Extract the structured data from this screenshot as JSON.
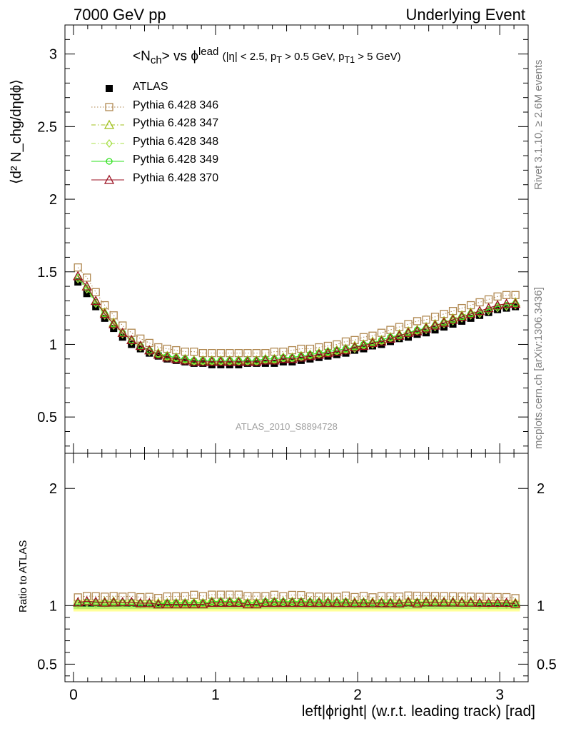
{
  "header": {
    "left": "7000 GeV pp",
    "right": "Underlying Event"
  },
  "side_labels": {
    "rivet": "Rivet 3.1.10, ≥ 2.6M events",
    "mcplots": "mcplots.cern.ch [arXiv:1306.3436]"
  },
  "watermark": "ATLAS_2010_S8894728",
  "chart_data": {
    "type": "scatter",
    "title_main": "<N",
    "title_main_sub": "ch",
    "title_mid": "> vs ϕ",
    "title_mid_sup": "lead",
    "title_detail": "(|η| < 2.5, p",
    "title_detail_sub1": "T",
    "title_detail_mid": " > 0.5 GeV, p",
    "title_detail_sub2": "T1",
    "title_detail_end": " > 5 GeV)",
    "ylabel": "⟨d² N_chg/dηdϕ⟩",
    "ylabel_ratio": "Ratio to ATLAS",
    "xlabel": "left|ϕright| (w.r.t. leading track) [rad]",
    "xlim": [
      -0.06,
      3.2
    ],
    "ylim": [
      0.25,
      3.2
    ],
    "ylim_ratio": [
      0.35,
      2.3
    ],
    "x_ticks": [
      "0",
      "1",
      "2",
      "3"
    ],
    "y_ticks": [
      "0.5",
      "1",
      "1.5",
      "2",
      "2.5",
      "3"
    ],
    "y_ticks_ratio": [
      "0.5",
      "1",
      "2"
    ],
    "grid": false,
    "legend_position": "top-left",
    "x": [
      0.0314,
      0.0942,
      0.157,
      0.2199,
      0.2827,
      0.3456,
      0.4084,
      0.4712,
      0.5341,
      0.5969,
      0.6597,
      0.7226,
      0.7854,
      0.8482,
      0.9111,
      0.9739,
      1.0367,
      1.0996,
      1.1624,
      1.2252,
      1.2881,
      1.3509,
      1.4137,
      1.4765,
      1.5394,
      1.6022,
      1.665,
      1.7279,
      1.7907,
      1.8535,
      1.9164,
      1.9792,
      2.042,
      2.1049,
      2.1677,
      2.2305,
      2.2934,
      2.3562,
      2.419,
      2.4819,
      2.5447,
      2.6075,
      2.6704,
      2.7332,
      2.796,
      2.8588,
      2.9217,
      2.9845,
      3.0473,
      3.1102
    ],
    "series": [
      {
        "name": "ATLAS",
        "color": "#000000",
        "marker": "square-filled",
        "values": [
          1.43,
          1.35,
          1.26,
          1.18,
          1.11,
          1.05,
          1.0,
          0.97,
          0.94,
          0.92,
          0.9,
          0.89,
          0.88,
          0.87,
          0.87,
          0.86,
          0.86,
          0.86,
          0.86,
          0.87,
          0.87,
          0.87,
          0.87,
          0.88,
          0.88,
          0.89,
          0.9,
          0.91,
          0.92,
          0.93,
          0.94,
          0.96,
          0.97,
          0.99,
          1.0,
          1.02,
          1.04,
          1.05,
          1.07,
          1.08,
          1.1,
          1.12,
          1.14,
          1.16,
          1.18,
          1.2,
          1.22,
          1.24,
          1.25,
          1.26
        ]
      },
      {
        "name": "Pythia 6.428 346",
        "color": "#b08850",
        "marker": "square-open",
        "line": "dotted",
        "values": [
          1.53,
          1.46,
          1.36,
          1.27,
          1.2,
          1.13,
          1.08,
          1.04,
          1.01,
          0.98,
          0.97,
          0.96,
          0.95,
          0.95,
          0.94,
          0.94,
          0.94,
          0.94,
          0.94,
          0.94,
          0.94,
          0.94,
          0.95,
          0.95,
          0.96,
          0.97,
          0.97,
          0.98,
          0.99,
          1.0,
          1.02,
          1.03,
          1.05,
          1.06,
          1.08,
          1.1,
          1.12,
          1.14,
          1.16,
          1.17,
          1.19,
          1.21,
          1.23,
          1.25,
          1.27,
          1.29,
          1.31,
          1.33,
          1.34,
          1.34
        ]
      },
      {
        "name": "Pythia 6.428 347",
        "color": "#9fbf1a",
        "marker": "triangle-open",
        "line": "dashdot",
        "values": [
          1.47,
          1.4,
          1.3,
          1.22,
          1.15,
          1.08,
          1.03,
          0.99,
          0.96,
          0.94,
          0.92,
          0.91,
          0.9,
          0.89,
          0.89,
          0.89,
          0.89,
          0.89,
          0.89,
          0.89,
          0.89,
          0.9,
          0.9,
          0.91,
          0.91,
          0.92,
          0.93,
          0.94,
          0.95,
          0.96,
          0.97,
          0.99,
          1.0,
          1.02,
          1.03,
          1.05,
          1.07,
          1.09,
          1.1,
          1.12,
          1.14,
          1.16,
          1.18,
          1.2,
          1.22,
          1.23,
          1.25,
          1.27,
          1.28,
          1.29
        ]
      },
      {
        "name": "Pythia 6.428 348",
        "color": "#a8e04a",
        "marker": "diamond-open",
        "line": "dashdot",
        "values": [
          1.45,
          1.38,
          1.28,
          1.2,
          1.13,
          1.07,
          1.02,
          0.98,
          0.95,
          0.93,
          0.91,
          0.9,
          0.89,
          0.88,
          0.88,
          0.88,
          0.88,
          0.88,
          0.88,
          0.88,
          0.88,
          0.89,
          0.89,
          0.9,
          0.9,
          0.91,
          0.92,
          0.93,
          0.94,
          0.95,
          0.96,
          0.97,
          0.99,
          1.0,
          1.02,
          1.04,
          1.05,
          1.07,
          1.09,
          1.1,
          1.12,
          1.14,
          1.16,
          1.18,
          1.2,
          1.21,
          1.23,
          1.25,
          1.26,
          1.27
        ]
      },
      {
        "name": "Pythia 6.428 349",
        "color": "#2ee01c",
        "marker": "circle-open",
        "line": "solid",
        "values": [
          1.46,
          1.39,
          1.29,
          1.21,
          1.14,
          1.08,
          1.03,
          0.99,
          0.96,
          0.93,
          0.92,
          0.91,
          0.9,
          0.89,
          0.89,
          0.89,
          0.89,
          0.89,
          0.89,
          0.89,
          0.89,
          0.9,
          0.9,
          0.91,
          0.91,
          0.92,
          0.93,
          0.94,
          0.95,
          0.96,
          0.97,
          0.98,
          1.0,
          1.01,
          1.03,
          1.05,
          1.06,
          1.08,
          1.1,
          1.11,
          1.13,
          1.15,
          1.17,
          1.19,
          1.21,
          1.22,
          1.24,
          1.26,
          1.27,
          1.28
        ]
      },
      {
        "name": "Pythia 6.428 370",
        "color": "#9b1020",
        "marker": "triangle-open",
        "line": "solid",
        "values": [
          1.47,
          1.4,
          1.3,
          1.21,
          1.14,
          1.08,
          1.03,
          0.99,
          0.96,
          0.93,
          0.91,
          0.9,
          0.89,
          0.88,
          0.88,
          0.88,
          0.88,
          0.88,
          0.88,
          0.88,
          0.88,
          0.89,
          0.89,
          0.9,
          0.9,
          0.91,
          0.92,
          0.93,
          0.94,
          0.95,
          0.96,
          0.98,
          0.99,
          1.01,
          1.02,
          1.04,
          1.06,
          1.08,
          1.09,
          1.11,
          1.13,
          1.15,
          1.17,
          1.19,
          1.21,
          1.23,
          1.25,
          1.27,
          1.28,
          1.28
        ]
      }
    ],
    "ratio_band": {
      "inner_color": "#4cd84c",
      "middle_color": "#b8f06a",
      "outer_color": "#ffff99",
      "inner": [
        0.99,
        1.01
      ],
      "middle": [
        0.97,
        1.03
      ],
      "outer": [
        0.95,
        1.05
      ]
    }
  }
}
